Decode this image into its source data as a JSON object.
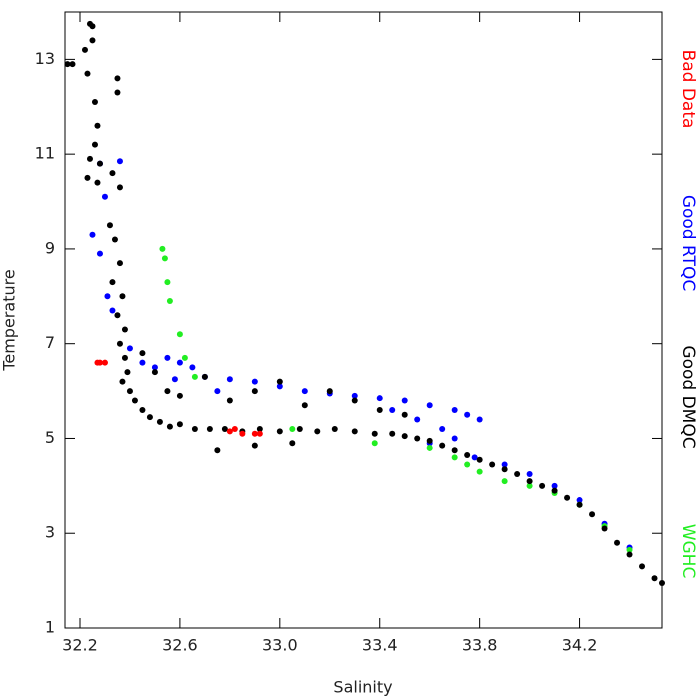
{
  "chart_data": {
    "type": "scatter",
    "xlabel": "Salinity",
    "ylabel": "Temperature",
    "xlim": [
      32.14,
      34.53
    ],
    "ylim": [
      1,
      14
    ],
    "xticks": [
      32.2,
      32.6,
      {
        "value": 33,
        "label": "33.0"
      },
      33.4,
      33.8,
      34.2
    ],
    "yticks": [
      1,
      3,
      5,
      7,
      9,
      11,
      13
    ],
    "legend": "right",
    "series": [
      {
        "name": "Bad Data",
        "color": "#ff0000",
        "x": [
          32.27,
          32.28,
          32.3,
          32.8,
          32.85,
          32.9,
          32.92,
          32.82
        ],
        "y": [
          6.6,
          6.6,
          6.6,
          5.15,
          5.1,
          5.1,
          5.1,
          5.2
        ]
      },
      {
        "name": "Good RTQC",
        "color": "#0000ff",
        "x": [
          32.28,
          32.3,
          32.25,
          32.28,
          32.31,
          32.33,
          32.4,
          32.45,
          32.5,
          32.55,
          32.6,
          32.65,
          32.7,
          32.8,
          32.9,
          33.0,
          33.1,
          33.2,
          33.3,
          33.4,
          33.5,
          33.6,
          33.7,
          33.75,
          33.8,
          33.7,
          33.65,
          33.55,
          33.6,
          33.45,
          33.78,
          33.9,
          34.0,
          34.1,
          34.2,
          34.3,
          34.4,
          32.36,
          32.58,
          32.75
        ],
        "y": [
          10.8,
          10.1,
          9.3,
          8.9,
          8.0,
          7.7,
          6.9,
          6.6,
          6.5,
          6.7,
          6.6,
          6.5,
          6.3,
          6.25,
          6.2,
          6.1,
          6.0,
          5.95,
          5.9,
          5.85,
          5.8,
          5.7,
          5.6,
          5.5,
          5.4,
          5.0,
          5.2,
          5.4,
          4.9,
          5.6,
          4.6,
          4.45,
          4.25,
          4.0,
          3.7,
          3.2,
          2.7,
          10.85,
          6.25,
          6.0
        ]
      },
      {
        "name": "Good DMQC",
        "color": "#000000",
        "x": [
          32.15,
          32.17,
          32.24,
          32.25,
          32.22,
          32.25,
          32.23,
          32.26,
          32.27,
          32.26,
          32.24,
          32.28,
          32.23,
          32.27,
          32.35,
          32.35,
          32.33,
          32.36,
          32.32,
          32.34,
          32.36,
          32.33,
          32.37,
          32.35,
          32.38,
          32.36,
          32.38,
          32.39,
          32.37,
          32.4,
          32.42,
          32.45,
          32.48,
          32.52,
          32.56,
          32.6,
          32.66,
          32.72,
          32.78,
          32.85,
          32.92,
          33.0,
          33.08,
          33.15,
          33.22,
          33.3,
          33.38,
          33.45,
          33.5,
          33.55,
          33.6,
          33.65,
          33.7,
          33.75,
          33.8,
          33.85,
          33.9,
          33.95,
          34.0,
          34.05,
          34.1,
          34.15,
          34.2,
          34.25,
          34.3,
          34.35,
          34.4,
          34.45,
          34.5,
          34.53,
          32.6,
          32.7,
          32.8,
          32.9,
          33.0,
          33.1,
          33.2,
          33.3,
          33.4,
          32.75,
          32.9,
          33.05,
          32.5,
          32.55,
          32.45,
          33.5
        ],
        "y": [
          12.9,
          12.9,
          13.75,
          13.7,
          13.2,
          13.4,
          12.7,
          12.1,
          11.6,
          11.2,
          10.9,
          10.8,
          10.5,
          10.4,
          12.6,
          12.3,
          10.6,
          10.3,
          9.5,
          9.2,
          8.7,
          8.3,
          8.0,
          7.6,
          7.3,
          7.0,
          6.7,
          6.4,
          6.2,
          6.0,
          5.8,
          5.6,
          5.45,
          5.35,
          5.25,
          5.3,
          5.2,
          5.2,
          5.2,
          5.15,
          5.2,
          5.15,
          5.2,
          5.15,
          5.2,
          5.15,
          5.1,
          5.1,
          5.05,
          5.0,
          4.95,
          4.85,
          4.75,
          4.65,
          4.55,
          4.45,
          4.35,
          4.25,
          4.1,
          4.0,
          3.9,
          3.75,
          3.6,
          3.4,
          3.1,
          2.8,
          2.55,
          2.3,
          2.05,
          1.95,
          5.9,
          6.3,
          5.8,
          6.0,
          6.2,
          5.7,
          6.0,
          5.8,
          5.6,
          4.75,
          4.85,
          4.9,
          6.4,
          6.0,
          6.8,
          5.5
        ]
      },
      {
        "name": "WGHC",
        "color": "#22ee22",
        "x": [
          32.53,
          32.54,
          32.55,
          32.56,
          32.6,
          32.62,
          32.66,
          33.05,
          33.38,
          33.6,
          33.7,
          33.75,
          33.8,
          33.9,
          34.0,
          34.1,
          34.2,
          34.3,
          34.4
        ],
        "y": [
          9.0,
          8.8,
          8.3,
          7.9,
          7.2,
          6.7,
          6.3,
          5.2,
          4.9,
          4.8,
          4.6,
          4.45,
          4.3,
          4.1,
          4.0,
          3.85,
          3.6,
          3.15,
          2.65
        ]
      }
    ]
  }
}
